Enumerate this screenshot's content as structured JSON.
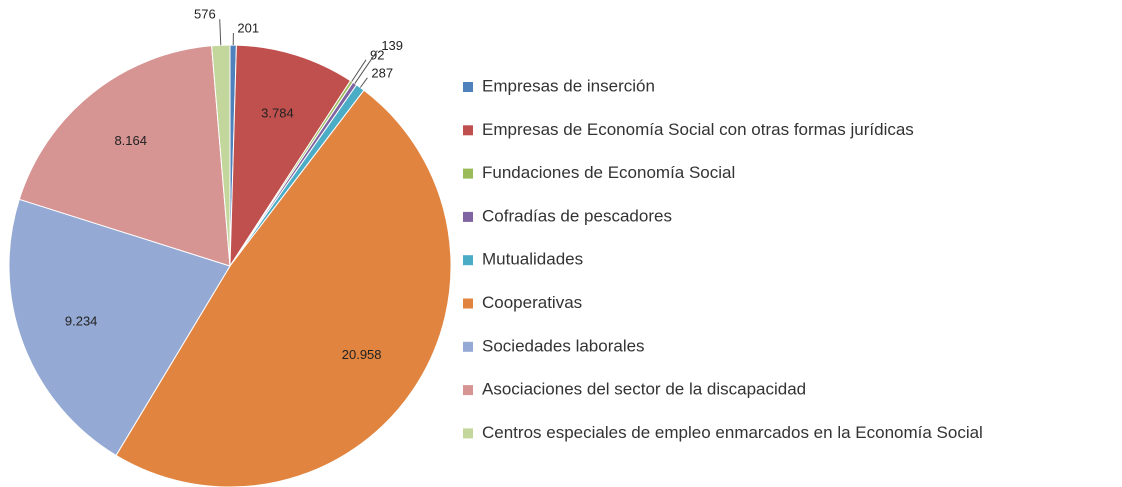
{
  "chart_data": {
    "type": "pie",
    "categories": [
      "Empresas de inserción",
      "Empresas de Economía Social con otras formas jurídicas",
      "Fundaciones de Economía Social",
      "Cofradías de pescadores",
      "Mutualidades",
      "Cooperativas",
      "Sociedades laborales",
      "Asociaciones del sector de la discapacidad",
      "Centros especiales de empleo enmarcados en la Economía Social"
    ],
    "values": [
      201,
      3784,
      92,
      139,
      287,
      20958,
      9234,
      8164,
      576
    ],
    "value_labels": [
      "201",
      "3.784",
      "92",
      "139",
      "287",
      "20.958",
      "9.234",
      "8.164",
      "576"
    ],
    "colors": [
      "#4f81bd",
      "#c0504d",
      "#9bbb59",
      "#8064a2",
      "#4bacc6",
      "#e0843f",
      "#94a9d3",
      "#d69493",
      "#c3d69b"
    ],
    "legend": "right"
  }
}
